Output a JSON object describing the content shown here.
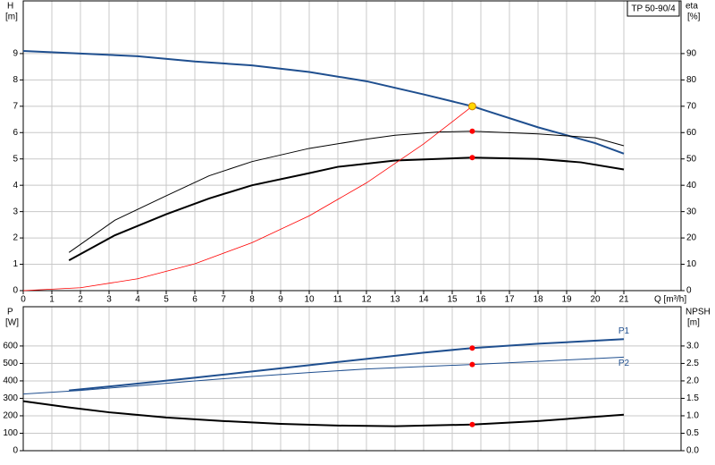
{
  "chart_data": [
    {
      "type": "line",
      "title": "TP 50-90/4",
      "ylabel": "H",
      "yunit": "[m]",
      "y2label": "eta",
      "y2unit": "[%]",
      "xlabel": "Q [m³/h]",
      "xlim": [
        0,
        23
      ],
      "xticks": [
        0,
        1,
        2,
        3,
        4,
        5,
        6,
        7,
        8,
        9,
        10,
        11,
        12,
        13,
        14,
        15,
        16,
        17,
        18,
        19,
        20,
        21
      ],
      "ylim": [
        0,
        11
      ],
      "yticks": [
        0,
        1,
        2,
        3,
        4,
        5,
        6,
        7,
        8,
        9
      ],
      "y2lim": [
        0,
        110
      ],
      "y2ticks": [
        0,
        10,
        20,
        30,
        40,
        50,
        60,
        70,
        80,
        90
      ],
      "grid": true,
      "series": [
        {
          "color": "#1f4f8f",
          "linewidth": 2,
          "x": [
            0,
            2,
            4,
            6,
            8,
            10,
            12,
            14,
            15.7,
            18,
            20,
            21
          ],
          "values": [
            9.1,
            9.0,
            8.9,
            8.7,
            8.55,
            8.3,
            7.95,
            7.45,
            7.0,
            6.2,
            5.6,
            5.2
          ]
        },
        {
          "color": "#000000",
          "linewidth": 1,
          "axis": "y2",
          "x": [
            1.6,
            3.2,
            5,
            6.5,
            8,
            10,
            12,
            13,
            14.5,
            15.7,
            18,
            20,
            21
          ],
          "values": [
            14.5,
            26.7,
            36,
            43.6,
            49,
            54,
            57.5,
            59,
            60.2,
            60.5,
            59.5,
            58,
            55
          ]
        },
        {
          "color": "#000000",
          "linewidth": 2,
          "axis": "y2",
          "x": [
            1.6,
            3.2,
            5,
            6.5,
            8,
            10,
            11,
            13,
            15.7,
            18,
            19.5,
            21
          ],
          "values": [
            11.5,
            21,
            29,
            35,
            40,
            44.6,
            47,
            49.4,
            50.5,
            50,
            48.7,
            46
          ]
        },
        {
          "color": "#ff0000",
          "linewidth": 0.8,
          "x": [
            0,
            2,
            4,
            6,
            8,
            10,
            12,
            14,
            15.7
          ],
          "values": [
            0,
            0.11,
            0.45,
            1.02,
            1.82,
            2.84,
            4.09,
            5.57,
            7.0
          ]
        }
      ],
      "points": [
        {
          "x": 15.7,
          "y": 7.0,
          "color": "#ffd700"
        },
        {
          "x": 15.7,
          "y": 60.5,
          "axis": "y2",
          "color": "#ff0000"
        },
        {
          "x": 15.7,
          "y": 50.5,
          "axis": "y2",
          "color": "#ff0000"
        }
      ]
    },
    {
      "type": "line",
      "ylabel": "P",
      "yunit": "[W]",
      "y2label": "NPSH",
      "y2unit": "[m]",
      "xlim": [
        0,
        23
      ],
      "ylim": [
        0,
        825
      ],
      "yticks": [
        0,
        100,
        200,
        300,
        400,
        500,
        600
      ],
      "y2lim": [
        0,
        4.125
      ],
      "y2ticks": [
        {
          "value": 0,
          "label": "0.0"
        },
        0.5,
        {
          "value": 1,
          "label": "1.0"
        },
        1.5,
        {
          "value": 2,
          "label": "2.0"
        },
        2.5,
        {
          "value": 3,
          "label": "3.0"
        }
      ],
      "grid": true,
      "series": [
        {
          "name": "P1",
          "color": "#1f4f8f",
          "linewidth": 2,
          "x": [
            1.6,
            3.2,
            6,
            8,
            10,
            12,
            14,
            15.7,
            18,
            21
          ],
          "values": [
            345,
            371,
            418,
            454,
            490,
            526,
            562,
            588,
            613,
            639
          ]
        },
        {
          "name": "P2",
          "color": "#1f4f8f",
          "linewidth": 1,
          "x": [
            0,
            2,
            4,
            6,
            8,
            10,
            12,
            14,
            15.7,
            18,
            21
          ],
          "values": [
            325,
            345,
            372,
            400,
            425,
            448,
            468,
            482,
            494,
            512,
            536
          ]
        },
        {
          "color": "#000000",
          "linewidth": 2,
          "axis": "y2",
          "x": [
            0,
            1.6,
            3,
            5,
            7,
            9,
            11,
            13,
            15.7,
            18,
            21
          ],
          "values": [
            1.42,
            1.24,
            1.1,
            0.95,
            0.85,
            0.77,
            0.72,
            0.7,
            0.75,
            0.85,
            1.03
          ]
        }
      ],
      "points": [
        {
          "x": 15.7,
          "y": 588,
          "color": "#ff0000"
        },
        {
          "x": 15.7,
          "y": 494,
          "color": "#ff0000"
        },
        {
          "x": 15.7,
          "y": 0.75,
          "axis": "y2",
          "color": "#ff0000"
        }
      ]
    }
  ]
}
